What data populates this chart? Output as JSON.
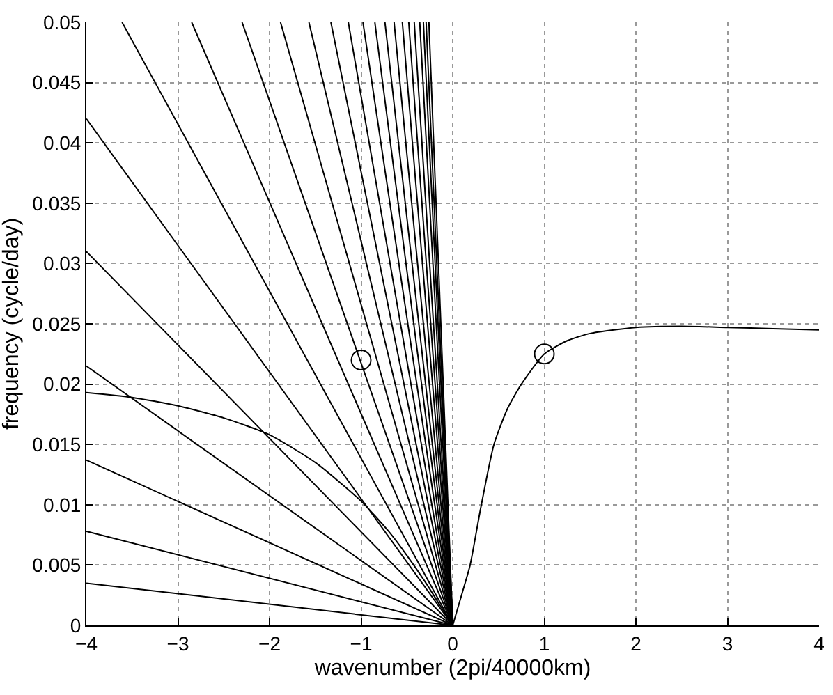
{
  "chart_data": {
    "type": "line",
    "xlabel": "wavenumber (2pi/40000km)",
    "ylabel": "frequency (cycle/day)",
    "xlim": [
      -4,
      4
    ],
    "ylim": [
      0,
      0.05
    ],
    "xticks": [
      {
        "value": -4,
        "label": "−4"
      },
      {
        "value": -3,
        "label": "−3"
      },
      {
        "value": -2,
        "label": "−2"
      },
      {
        "value": -1,
        "label": "−1"
      },
      0,
      1,
      2,
      3,
      4
    ],
    "yticks": [
      0,
      0.005,
      0.01,
      0.015,
      0.02,
      0.025,
      0.03,
      0.035,
      0.04,
      0.045,
      0.05
    ],
    "grid": true,
    "marker": "none",
    "line_style": "solid",
    "series": [
      {
        "color": "#000000",
        "x": [
          -4,
          0
        ],
        "values": [
          0.0035,
          0
        ]
      },
      {
        "color": "#000000",
        "x": [
          -4,
          0
        ],
        "values": [
          0.0078,
          0
        ]
      },
      {
        "color": "#000000",
        "x": [
          -4,
          0
        ],
        "values": [
          0.0137,
          0
        ]
      },
      {
        "color": "#000000",
        "x": [
          -4,
          0
        ],
        "values": [
          0.0215,
          0
        ]
      },
      {
        "color": "#000000",
        "x": [
          -4,
          0
        ],
        "values": [
          0.031,
          0
        ]
      },
      {
        "color": "#000000",
        "x": [
          -4,
          0
        ],
        "values": [
          0.042,
          0
        ]
      },
      {
        "color": "#000000",
        "x": [
          -3.61,
          0
        ],
        "values": [
          0.05,
          0
        ]
      },
      {
        "color": "#000000",
        "x": [
          -2.85,
          0
        ],
        "values": [
          0.05,
          0
        ]
      },
      {
        "color": "#000000",
        "x": [
          -2.3,
          0
        ],
        "values": [
          0.05,
          0
        ]
      },
      {
        "color": "#000000",
        "x": [
          -1.88,
          0
        ],
        "values": [
          0.05,
          0
        ]
      },
      {
        "color": "#000000",
        "x": [
          -1.57,
          0
        ],
        "values": [
          0.05,
          0
        ]
      },
      {
        "color": "#000000",
        "x": [
          -1.33,
          0
        ],
        "values": [
          0.05,
          0
        ]
      },
      {
        "color": "#000000",
        "x": [
          -1.14,
          0
        ],
        "values": [
          0.05,
          0
        ]
      },
      {
        "color": "#000000",
        "x": [
          -0.98,
          0
        ],
        "values": [
          0.05,
          0
        ]
      },
      {
        "color": "#000000",
        "x": [
          -0.85,
          0
        ],
        "values": [
          0.05,
          0
        ]
      },
      {
        "color": "#000000",
        "x": [
          -0.74,
          0
        ],
        "values": [
          0.05,
          0
        ]
      },
      {
        "color": "#000000",
        "x": [
          -0.64,
          0
        ],
        "values": [
          0.05,
          0
        ]
      },
      {
        "color": "#000000",
        "x": [
          -0.55,
          0
        ],
        "values": [
          0.05,
          0
        ]
      },
      {
        "color": "#000000",
        "x": [
          -0.48,
          0
        ],
        "values": [
          0.05,
          0
        ]
      },
      {
        "color": "#000000",
        "x": [
          -0.42,
          0
        ],
        "values": [
          0.05,
          0
        ]
      },
      {
        "color": "#000000",
        "x": [
          -0.36,
          0
        ],
        "values": [
          0.05,
          0
        ]
      },
      {
        "color": "#000000",
        "x": [
          -0.32,
          0
        ],
        "values": [
          0.05,
          0
        ]
      },
      {
        "color": "#000000",
        "x": [
          -0.29,
          0
        ],
        "values": [
          0.05,
          0
        ]
      },
      {
        "color": "#000000",
        "x": [
          -0.26,
          0
        ],
        "values": [
          0.05,
          0
        ]
      },
      {
        "color": "#000000",
        "x": [
          -4,
          -3.5,
          -3,
          -2.5,
          -2,
          -1.5,
          -1,
          -0.7,
          -0.5,
          -0.3,
          -0.15,
          0
        ],
        "values": [
          0.0193,
          0.0189,
          0.0182,
          0.0172,
          0.0158,
          0.0135,
          0.0103,
          0.0078,
          0.0058,
          0.0036,
          0.0018,
          0
        ]
      },
      {
        "color": "#000000",
        "x": [
          0,
          0.1,
          0.19,
          0.3,
          0.45,
          0.6,
          0.75,
          1,
          1.25,
          1.5,
          2,
          2.5,
          3,
          3.5,
          4
        ],
        "values": [
          0,
          0.0026,
          0.005,
          0.0095,
          0.015,
          0.018,
          0.02,
          0.0225,
          0.0236,
          0.0242,
          0.0247,
          0.0248,
          0.0247,
          0.0246,
          0.0245
        ]
      },
      {
        "type": "scatter",
        "color": "#000000",
        "marker": "circle",
        "x": [
          -1,
          1
        ],
        "values": [
          0.022,
          0.0225
        ]
      }
    ]
  }
}
